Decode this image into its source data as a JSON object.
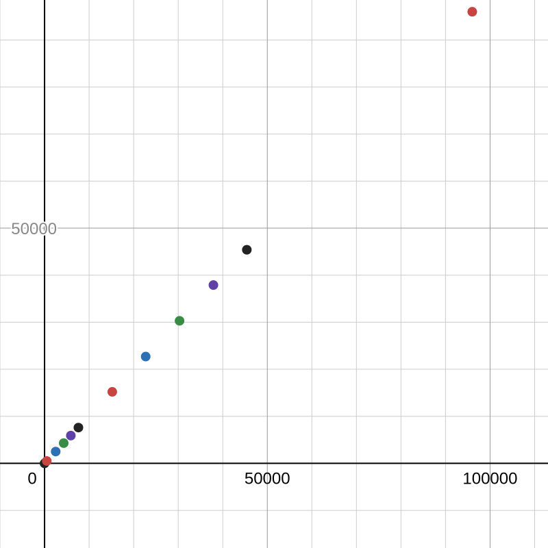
{
  "chart_data": {
    "type": "scatter",
    "title": "",
    "xlabel": "",
    "ylabel": "",
    "xlim": [
      -10000,
      113000
    ],
    "ylim": [
      -18000,
      98500
    ],
    "grid": true,
    "x_ticks": [
      {
        "value": 0,
        "label": "0"
      },
      {
        "value": 50000,
        "label": "50000"
      },
      {
        "value": 100000,
        "label": "100000"
      }
    ],
    "y_ticks": [
      {
        "value": 50000,
        "label": "50000"
      }
    ],
    "minor_grid_step": 10000,
    "points": [
      {
        "x": 0,
        "y": 0,
        "color": "#222222"
      },
      {
        "x": 500,
        "y": 500,
        "color": "#c74440"
      },
      {
        "x": 2500,
        "y": 2500,
        "color": "#2d70b3"
      },
      {
        "x": 4300,
        "y": 4300,
        "color": "#388c46"
      },
      {
        "x": 5900,
        "y": 5900,
        "color": "#6042a6"
      },
      {
        "x": 7600,
        "y": 7600,
        "color": "#222222"
      },
      {
        "x": 15200,
        "y": 15200,
        "color": "#c74440"
      },
      {
        "x": 22700,
        "y": 22700,
        "color": "#2d70b3"
      },
      {
        "x": 30300,
        "y": 30300,
        "color": "#388c46"
      },
      {
        "x": 37900,
        "y": 37900,
        "color": "#6042a6"
      },
      {
        "x": 45400,
        "y": 45400,
        "color": "#222222"
      },
      {
        "x": 96000,
        "y": 96000,
        "color": "#c74440"
      }
    ],
    "colors": {
      "axis": "#000000",
      "grid_major": "#999999",
      "grid_minor": "#cccccc",
      "tick_label": "#888888",
      "tick_label_dark": "#000000"
    }
  }
}
